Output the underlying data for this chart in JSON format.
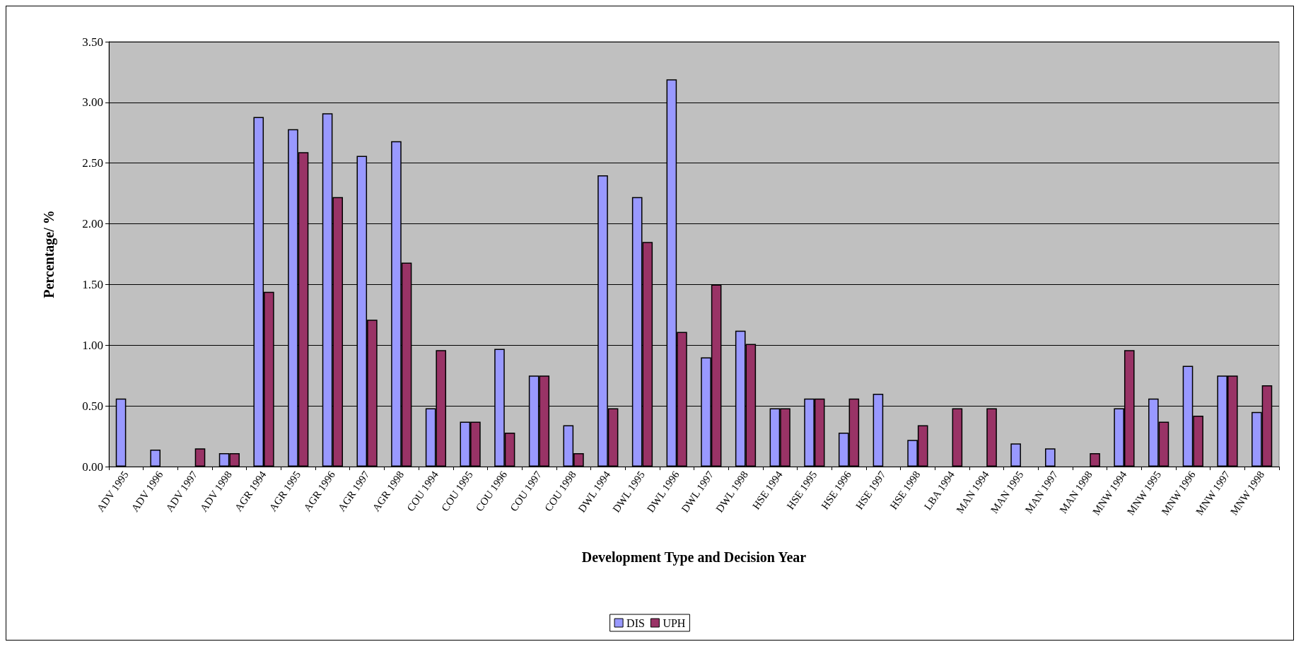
{
  "chart_data": {
    "type": "bar",
    "xlabel": "Development Type and Decision Year",
    "ylabel": "Percentage/ %",
    "categories": [
      "ADV 1995",
      "ADV 1996",
      "ADV 1997",
      "ADV 1998",
      "AGR 1994",
      "AGR 1995",
      "AGR 1996",
      "AGR 1997",
      "AGR 1998",
      "COU 1994",
      "COU 1995",
      "COU 1996",
      "COU 1997",
      "COU 1998",
      "DWL 1994",
      "DWL 1995",
      "DWL 1996",
      "DWL 1997",
      "DWL 1998",
      "HSE 1994",
      "HSE 1995",
      "HSE 1996",
      "HSE 1997",
      "HSE 1998",
      "LBA 1994",
      "MAN 1994",
      "MAN 1995",
      "MAN 1997",
      "MAN 1998",
      "MNW 1994",
      "MNW 1995",
      "MNW 1996",
      "MNW 1997",
      "MNW 1998"
    ],
    "series": [
      {
        "name": "DIS",
        "color": "#9999ff",
        "values": [
          0.56,
          0.14,
          null,
          0.11,
          2.88,
          2.78,
          2.91,
          2.56,
          2.68,
          0.48,
          0.37,
          0.97,
          0.75,
          0.34,
          2.4,
          2.22,
          3.19,
          0.9,
          1.12,
          0.48,
          0.56,
          0.28,
          0.6,
          0.22,
          null,
          null,
          0.19,
          0.15,
          null,
          0.48,
          0.56,
          0.83,
          0.75,
          0.45
        ]
      },
      {
        "name": "UPH",
        "color": "#993366",
        "values": [
          null,
          null,
          0.15,
          0.11,
          1.44,
          2.59,
          2.22,
          1.21,
          1.68,
          0.96,
          0.37,
          0.28,
          0.75,
          0.11,
          0.48,
          1.85,
          1.11,
          1.5,
          1.01,
          0.48,
          0.56,
          0.56,
          null,
          0.34,
          0.48,
          0.48,
          null,
          null,
          0.11,
          0.96,
          0.37,
          0.42,
          0.75,
          0.67
        ]
      }
    ],
    "ylim": [
      0,
      3.5
    ],
    "yticks": [
      {
        "value": 0,
        "label": "0.00"
      },
      {
        "value": 0.5,
        "label": "0.50"
      },
      {
        "value": 1,
        "label": "1.00"
      },
      {
        "value": 1.5,
        "label": "1.50"
      },
      {
        "value": 2,
        "label": "2.00"
      },
      {
        "value": 2.5,
        "label": "2.50"
      },
      {
        "value": 3,
        "label": "3.00"
      },
      {
        "value": 3.5,
        "label": "3.50"
      }
    ],
    "grid": "y",
    "legend": "bottom"
  }
}
